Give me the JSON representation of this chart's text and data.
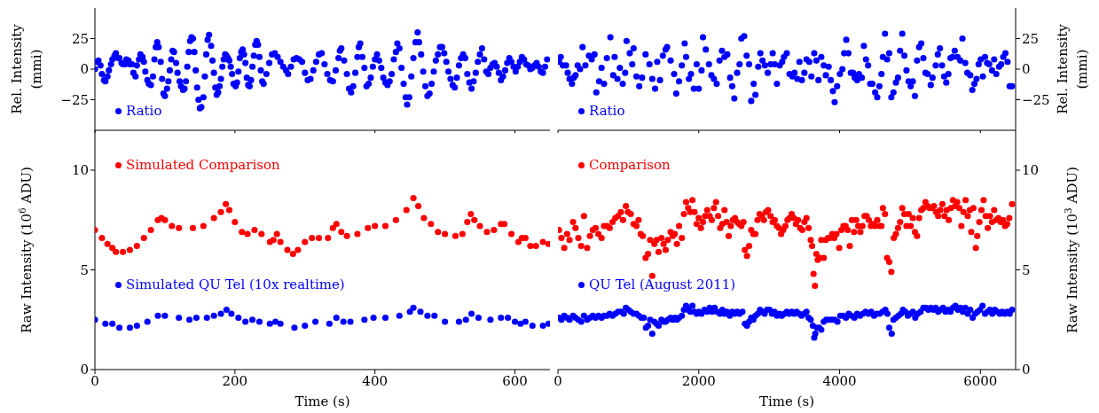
{
  "chart_data": [
    {
      "type": "scatter",
      "ylabel": "Rel. Intensity (mmi)",
      "xlim": [
        0,
        650
      ],
      "xticks": [
        0,
        200,
        400,
        600
      ],
      "ylim": [
        -50,
        50
      ],
      "yticks": [
        -25,
        0,
        25
      ],
      "tick_labels": "y",
      "legend": "bottom left",
      "marker": "circle",
      "series": [
        {
          "name": "Ratio",
          "color": "#0000ff",
          "x": [
            0,
            3,
            5,
            8,
            10,
            13,
            15,
            18,
            20,
            23,
            25,
            28,
            30,
            33,
            35,
            38,
            40,
            43,
            45,
            48,
            50,
            53,
            55,
            58,
            60,
            63,
            65,
            68,
            70,
            72,
            75,
            77,
            80,
            83,
            85,
            87,
            89,
            91,
            94,
            96,
            98,
            100,
            103,
            105,
            107,
            109,
            111,
            113,
            116,
            118,
            121,
            123,
            126,
            128,
            130,
            132,
            134,
            136,
            138,
            140,
            142,
            144,
            146,
            148,
            150,
            152,
            155,
            157,
            159,
            161,
            163,
            166,
            168,
            170,
            172,
            174,
            176,
            178,
            180,
            182,
            184,
            186,
            188,
            190,
            192,
            194,
            196,
            198,
            201,
            203,
            205,
            207,
            209,
            211,
            213,
            215,
            217,
            219,
            221,
            223,
            225,
            227,
            229,
            231,
            233,
            235,
            237,
            239,
            241,
            245,
            249,
            253,
            257,
            261,
            265,
            269,
            273,
            276,
            280,
            284,
            288,
            292,
            296,
            300,
            304,
            308,
            312,
            316,
            320,
            324,
            328,
            332,
            336,
            340,
            344,
            348,
            350,
            352,
            356,
            360,
            363,
            366,
            369,
            372,
            375,
            377,
            379,
            382,
            385,
            388,
            391,
            394,
            397,
            400,
            403,
            406,
            409,
            412,
            415,
            418,
            421,
            424,
            427,
            430,
            432,
            435,
            438,
            441,
            444,
            446,
            449,
            452,
            455,
            458,
            461,
            463,
            466,
            469,
            472,
            475,
            478,
            481,
            484,
            487,
            490,
            493,
            496,
            499,
            502,
            505,
            508,
            511,
            514,
            517,
            520,
            523,
            526,
            529,
            532,
            535,
            538,
            541,
            544,
            547,
            550,
            553,
            556,
            559,
            562,
            565,
            568,
            571,
            574,
            577,
            580,
            583,
            586,
            589,
            592,
            595,
            598,
            601,
            604,
            607,
            610,
            613,
            616,
            619,
            622,
            625,
            628,
            631,
            634,
            637,
            640,
            643,
            646
          ],
          "values": [
            0,
            6,
            7,
            3,
            -4,
            -9,
            -10,
            -6,
            -1,
            4,
            8,
            11,
            13,
            9,
            9,
            5,
            4,
            4,
            8,
            7,
            4,
            4,
            -3,
            -6,
            3,
            8,
            12,
            10,
            6,
            -2,
            -9,
            -12,
            -13,
            -6,
            8,
            18,
            22,
            18,
            6,
            -8,
            -20,
            -22,
            -16,
            -10,
            -1,
            8,
            15,
            14,
            5,
            -3,
            -10,
            -14,
            -17,
            -16,
            -10,
            2,
            14,
            23,
            26,
            25,
            14,
            -1,
            -15,
            -25,
            -32,
            -31,
            -23,
            -6,
            12,
            24,
            28,
            19,
            7,
            -3,
            -15,
            -21,
            -19,
            -14,
            -8,
            2,
            8,
            12,
            11,
            9,
            7,
            2,
            -4,
            -12,
            -14,
            -11,
            -2,
            9,
            14,
            16,
            12,
            5,
            -7,
            -13,
            -14,
            -9,
            2,
            11,
            20,
            23,
            20,
            10,
            -1,
            -10,
            -12,
            -4,
            5,
            12,
            13,
            10,
            6,
            2,
            -1,
            -4,
            2,
            8,
            9,
            8,
            6,
            -3,
            -9,
            -8,
            -1,
            6,
            12,
            13,
            4,
            -4,
            -9,
            -10,
            -1,
            9,
            15,
            17,
            7,
            -4,
            -16,
            -19,
            -14,
            -3,
            10,
            18,
            21,
            10,
            1,
            -14,
            -12,
            -7,
            2,
            8,
            12,
            7,
            1,
            -7,
            -11,
            -13,
            -10,
            -4,
            8,
            14,
            21,
            17,
            1,
            -12,
            -23,
            -29,
            -23,
            -6,
            9,
            22,
            30,
            22,
            12,
            -2,
            -14,
            -22,
            -20,
            -12,
            -2,
            7,
            12,
            18,
            18,
            13,
            6,
            -2,
            -8,
            -13,
            -15,
            -7,
            3,
            9,
            12,
            9,
            -4,
            -11,
            -16,
            -10,
            -3,
            6,
            12,
            17,
            8,
            -2,
            -4,
            1,
            4,
            5,
            2,
            -3,
            -9,
            -6,
            -1,
            5,
            9,
            6,
            2,
            -2,
            2,
            6,
            10,
            8,
            4,
            3,
            0,
            1,
            3,
            5,
            2,
            -2,
            -3,
            2,
            8
          ]
        }
      ]
    },
    {
      "type": "scatter",
      "y2label": "Rel. Intensity (mmi)",
      "xlim": [
        0,
        6500
      ],
      "xticks": [
        0,
        2000,
        4000,
        6000
      ],
      "y2lim": [
        -50,
        50
      ],
      "y2ticks": [
        -25,
        0,
        25
      ],
      "tick_labels": "y",
      "legend": "bottom left",
      "marker": "circle",
      "series": [
        {
          "name": "Ratio",
          "color": "#0000ff",
          "axis": "y2",
          "x": [
            15,
            40,
            70,
            115,
            140,
            165,
            200,
            225,
            250,
            280,
            315,
            350,
            390,
            440,
            480,
            520,
            545,
            585,
            620,
            655,
            695,
            745,
            785,
            805,
            845,
            880,
            920,
            955,
            975,
            1020,
            1055,
            1075,
            1115,
            1155,
            1195,
            1245,
            1300,
            1340,
            1380,
            1410,
            1450,
            1490,
            1530,
            1550,
            1600,
            1650,
            1680,
            1720,
            1760,
            1800,
            1820,
            1860,
            1890,
            1930,
            1970,
            2000,
            2040,
            2060,
            2100,
            2145,
            2180,
            2215,
            2255,
            2295,
            2330,
            2365,
            2405,
            2445,
            2475,
            2505,
            2545,
            2580,
            2605,
            2645,
            2680,
            2715,
            2745,
            2780,
            2805,
            2845,
            2875,
            2905,
            2940,
            2980,
            3020,
            3050,
            3080,
            3110,
            3150,
            3185,
            3210,
            3250,
            3290,
            3330,
            3360,
            3400,
            3430,
            3465,
            3500,
            3530,
            3570,
            3600,
            3640,
            3670,
            3700,
            3740,
            3775,
            3805,
            3845,
            3875,
            3905,
            3930,
            3965,
            4005,
            4040,
            4065,
            4095,
            4125,
            4160,
            4190,
            4215,
            4250,
            4275,
            4315,
            4345,
            4375,
            4405,
            4435,
            4465,
            4505,
            4535,
            4565,
            4595,
            4615,
            4645,
            4675,
            4705,
            4735,
            4765,
            4800,
            4830,
            4860,
            4890,
            4920,
            4950,
            4980,
            5010,
            5040,
            5070,
            5100,
            5130,
            5160,
            5190,
            5220,
            5250,
            5295,
            5320,
            5365,
            5395,
            5425,
            5455,
            5485,
            5515,
            5545,
            5575,
            5605,
            5635,
            5675,
            5715,
            5745,
            5785,
            5815,
            5855,
            5885,
            5915,
            5945,
            5975,
            6005,
            6035,
            6065,
            6095,
            6125,
            6165,
            6195,
            6225,
            6265,
            6295,
            6325,
            6355,
            6385,
            6415,
            6450
          ],
          "values": [
            6,
            10,
            3,
            3,
            -3,
            -8,
            -12,
            -7,
            -5,
            3,
            0,
            18,
            3,
            11,
            8,
            12,
            -19,
            -10,
            1,
            -12,
            9,
            26,
            -5,
            10,
            -8,
            1,
            -12,
            -3,
            23,
            13,
            4,
            17,
            -6,
            -14,
            -7,
            12,
            4,
            -8,
            -16,
            6,
            -9,
            11,
            16,
            18,
            7,
            -4,
            -20,
            -10,
            3,
            21,
            10,
            -8,
            -4,
            -16,
            4,
            -16,
            -1,
            26,
            16,
            4,
            -5,
            -8,
            -12,
            7,
            15,
            10,
            12,
            -7,
            -14,
            -24,
            -3,
            4,
            25,
            27,
            11,
            4,
            -26,
            -12,
            -21,
            2,
            13,
            7,
            3,
            -3,
            4,
            13,
            4,
            -12,
            3,
            6,
            10,
            13,
            -4,
            -6,
            -3,
            -8,
            6,
            -9,
            -3,
            8,
            6,
            -6,
            13,
            7,
            -9,
            10,
            3,
            -5,
            2,
            -9,
            -18,
            -27,
            -14,
            -4,
            0,
            13,
            24,
            13,
            -3,
            -3,
            -7,
            -9,
            -4,
            -7,
            19,
            8,
            3,
            -12,
            -12,
            -19,
            -23,
            -14,
            -4,
            10,
            29,
            8,
            13,
            -23,
            -19,
            -11,
            -7,
            15,
            29,
            11,
            -1,
            -10,
            -14,
            -10,
            -22,
            7,
            18,
            21,
            9,
            -3,
            -4,
            -13,
            -7,
            3,
            12,
            17,
            3,
            -6,
            -11,
            -4,
            9,
            10,
            15,
            10,
            7,
            25,
            5,
            -3,
            -5,
            -17,
            -12,
            -8,
            4,
            8,
            -6,
            10,
            5,
            4,
            -1,
            8,
            -4,
            2,
            4,
            10,
            13,
            6,
            -14,
            -14
          ]
        }
      ]
    },
    {
      "type": "scatter",
      "xlabel": "Time (s)",
      "ylabel": "Raw Intensity (10$^{6}$ ADU)",
      "xlim": [
        0,
        650
      ],
      "xticks": [
        0,
        200,
        400,
        600
      ],
      "ylim": [
        0,
        12
      ],
      "yticks": [
        0,
        5,
        10
      ],
      "legend": "left",
      "marker": "circle",
      "series": [
        {
          "name": "Simulated Comparison",
          "color": "#ff0000",
          "x": [
            0,
            10,
            18,
            25,
            30,
            40,
            50,
            60,
            70,
            80,
            90,
            95,
            100,
            110,
            120,
            140,
            155,
            170,
            180,
            187,
            192,
            200,
            210,
            218,
            228,
            238,
            250,
            255,
            260,
            265,
            275,
            283,
            290,
            300,
            310,
            320,
            333,
            340,
            345,
            352,
            360,
            375,
            390,
            400,
            415,
            430,
            445,
            455,
            462,
            470,
            480,
            490,
            500,
            515,
            525,
            532,
            537,
            542,
            550,
            560,
            570,
            580,
            585,
            595,
            605,
            610,
            615,
            622,
            630,
            640,
            648
          ],
          "values": [
            7.0,
            6.6,
            6.3,
            6.1,
            5.9,
            5.9,
            6.0,
            6.2,
            6.6,
            7.0,
            7.5,
            7.6,
            7.5,
            7.2,
            7.1,
            7.1,
            7.2,
            7.6,
            7.9,
            8.3,
            8.0,
            7.4,
            6.9,
            6.8,
            7.0,
            6.8,
            6.4,
            6.5,
            6.8,
            6.4,
            6.0,
            5.8,
            6.0,
            6.4,
            6.6,
            6.6,
            6.6,
            7.1,
            7.3,
            6.9,
            6.7,
            6.8,
            7.1,
            7.2,
            7.2,
            7.5,
            8.0,
            8.6,
            8.2,
            7.6,
            7.3,
            6.9,
            6.8,
            6.7,
            6.8,
            7.4,
            7.8,
            7.5,
            7.2,
            6.9,
            7.0,
            7.3,
            7.3,
            6.8,
            6.4,
            6.6,
            6.6,
            6.2,
            6.2,
            6.4,
            6.3
          ]
        },
        {
          "name": "Simulated QU Tel (10x realtime)",
          "color": "#0000ff",
          "x": [
            0,
            15,
            25,
            35,
            50,
            60,
            75,
            90,
            100,
            120,
            135,
            145,
            160,
            170,
            180,
            188,
            195,
            205,
            215,
            225,
            235,
            250,
            258,
            265,
            285,
            300,
            315,
            335,
            345,
            355,
            365,
            385,
            398,
            415,
            435,
            450,
            455,
            465,
            475,
            485,
            500,
            520,
            530,
            538,
            548,
            565,
            580,
            590,
            600,
            608,
            615,
            625,
            640,
            648
          ],
          "values": [
            2.5,
            2.3,
            2.3,
            2.1,
            2.1,
            2.2,
            2.4,
            2.7,
            2.7,
            2.6,
            2.5,
            2.6,
            2.6,
            2.7,
            2.8,
            3.0,
            2.8,
            2.6,
            2.4,
            2.5,
            2.4,
            2.3,
            2.4,
            2.3,
            2.1,
            2.2,
            2.4,
            2.3,
            2.6,
            2.4,
            2.4,
            2.5,
            2.6,
            2.6,
            2.7,
            2.9,
            3.1,
            2.9,
            2.7,
            2.7,
            2.4,
            2.4,
            2.5,
            2.8,
            2.6,
            2.5,
            2.6,
            2.6,
            2.4,
            2.3,
            2.4,
            2.2,
            2.2,
            2.3
          ]
        }
      ]
    },
    {
      "type": "scatter",
      "xlabel": "Time (s)",
      "y2label": "Raw Intensity (10$^{3}$ ADU)",
      "xlim": [
        0,
        6500
      ],
      "xticks": [
        0,
        2000,
        4000,
        6000
      ],
      "y2lim": [
        0,
        12
      ],
      "y2ticks": [
        0,
        5,
        10
      ],
      "legend": "left",
      "marker": "circle",
      "series": [
        {
          "name": "Comparison",
          "color": "#ff0000",
          "axis": "y2",
          "x": [
            15,
            50,
            90,
            130,
            165,
            215,
            250,
            290,
            330,
            370,
            415,
            455,
            495,
            535,
            575,
            620,
            655,
            695,
            735,
            775,
            815,
            855,
            895,
            925,
            965,
            995,
            1035,
            1075,
            1115,
            1145,
            1175,
            1205,
            1245,
            1280,
            1310,
            1340,
            1370,
            1400,
            1430,
            1470,
            1500,
            1530,
            1560,
            1600,
            1630,
            1660,
            1690,
            1720,
            1760,
            1790,
            1820,
            1850,
            1880,
            1910,
            1940,
            1970,
            2000,
            2030,
            2060,
            2090,
            2120,
            2155,
            2185,
            2215,
            2245,
            2275,
            2305,
            2335,
            2365,
            2395,
            2425,
            2455,
            2485,
            2515,
            2545,
            2575,
            2605,
            2635,
            2655,
            2685,
            2715,
            2745,
            2775,
            2805,
            2835,
            2865,
            2895,
            2925,
            2955,
            2985,
            3020,
            3050,
            3080,
            3110,
            3140,
            3170,
            3200,
            3230,
            3260,
            3290,
            3320,
            3350,
            3380,
            3410,
            3440,
            3470,
            3500,
            3530,
            3560,
            3590,
            3610,
            3630,
            3650,
            3670,
            3690,
            3720,
            3740,
            3775,
            3805,
            3835,
            3865,
            3895,
            3925,
            3955,
            3995,
            4025,
            4055,
            4085,
            4115,
            4145,
            4175,
            4205,
            4235,
            4265,
            4295,
            4325,
            4355,
            4385,
            4415,
            4445,
            4475,
            4505,
            4535,
            4565,
            4595,
            4615,
            4645,
            4675,
            4705,
            4735,
            4770,
            4800,
            4830,
            4860,
            4890,
            4920,
            4950,
            4980,
            5010,
            5040,
            5070,
            5100,
            5130,
            5160,
            5190,
            5220,
            5250,
            5280,
            5310,
            5340,
            5370,
            5400,
            5430,
            5460,
            5490,
            5520,
            5550,
            5580,
            5610,
            5640,
            5670,
            5700,
            5730,
            5760,
            5790,
            5820,
            5850,
            5870,
            5900,
            5935,
            5955,
            5985,
            6015,
            6045,
            6075,
            6105,
            6135,
            6165,
            6195,
            6225,
            6255,
            6290,
            6320,
            6350,
            6380,
            6410,
            6450
          ],
          "values": [
            7.0,
            6.6,
            6.1,
            6.8,
            6.5,
            7.4,
            7.1,
            6.6,
            6.2,
            7.7,
            6.1,
            6.7,
            7.0,
            7.1,
            6.8,
            6.6,
            7.2,
            7.2,
            7.1,
            7.4,
            7.6,
            7.7,
            7.9,
            7.5,
            8.2,
            7.9,
            7.8,
            7.3,
            7.2,
            7.5,
            6.8,
            6.7,
            5.6,
            5.8,
            6.5,
            4.7,
            6.3,
            6.5,
            5.9,
            6.6,
            6.3,
            6.0,
            6.5,
            6.9,
            6.7,
            6.8,
            6.3,
            7.2,
            6.6,
            7.8,
            8.4,
            8.1,
            7.9,
            8.5,
            7.9,
            7.3,
            7.6,
            7.1,
            7.4,
            7.7,
            8.0,
            7.7,
            7.5,
            8.1,
            8.4,
            7.7,
            7.1,
            7.3,
            8.0,
            7.4,
            6.7,
            7.2,
            7.5,
            7.6,
            7.4,
            7.3,
            7.2,
            7.4,
            6.0,
            5.7,
            6.2,
            7.0,
            6.8,
            6.8,
            7.5,
            7.8,
            7.7,
            7.5,
            7.9,
            8.0,
            7.7,
            7.4,
            7.5,
            7.2,
            7.1,
            6.8,
            7.0,
            7.2,
            7.5,
            7.6,
            7.8,
            7.6,
            7.3,
            7.5,
            7.1,
            7.0,
            7.4,
            7.6,
            7.1,
            6.5,
            6.2,
            4.8,
            4.2,
            5.8,
            5.5,
            5.6,
            6.5,
            5.6,
            6.5,
            6.6,
            6.6,
            6.8,
            6.6,
            6.8,
            6.1,
            7.0,
            7.2,
            7.2,
            7.0,
            6.2,
            7.5,
            6.9,
            7.5,
            7.2,
            6.9,
            7.2,
            7.7,
            7.7,
            7.5,
            7.2,
            7.3,
            7.2,
            7.5,
            7.2,
            7.2,
            8.1,
            7.8,
            5.6,
            5.4,
            4.9,
            6.6,
            6.8,
            7.1,
            7.4,
            8.1,
            7.8,
            7.2,
            7.8,
            7.2,
            7.6,
            6.9,
            6.7,
            7.6,
            8.0,
            8.1,
            8.4,
            8.2,
            8.1,
            8.1,
            8.2,
            7.9,
            7.7,
            8.0,
            8.3,
            7.7,
            8.0,
            7.5,
            8.1,
            8.5,
            8.2,
            8.4,
            8.1,
            7.2,
            7.9,
            8.5,
            7.7,
            8.0,
            6.9,
            8.1,
            6.1,
            6.7,
            7.4,
            8.0,
            8.5,
            7.7,
            7.1,
            7.7,
            7.4,
            8.0,
            7.5,
            7.6,
            7.4,
            7.5,
            7.2,
            7.3,
            7.6,
            8.3
          ]
        },
        {
          "name": "QU Tel (August 2011)",
          "color": "#0000ff",
          "axis": "y2",
          "x": [
            15,
            50,
            90,
            130,
            165,
            215,
            250,
            290,
            330,
            370,
            415,
            455,
            495,
            535,
            575,
            620,
            655,
            695,
            735,
            775,
            815,
            855,
            895,
            935,
            965,
            1000,
            1035,
            1075,
            1115,
            1150,
            1185,
            1220,
            1250,
            1280,
            1310,
            1340,
            1370,
            1400,
            1430,
            1470,
            1500,
            1530,
            1560,
            1600,
            1630,
            1660,
            1690,
            1720,
            1760,
            1790,
            1820,
            1850,
            1880,
            1910,
            1940,
            1970,
            2000,
            2040,
            2080,
            2120,
            2155,
            2190,
            2225,
            2260,
            2300,
            2335,
            2365,
            2400,
            2440,
            2475,
            2510,
            2545,
            2580,
            2620,
            2655,
            2685,
            2715,
            2745,
            2775,
            2805,
            2840,
            2870,
            2900,
            2935,
            2970,
            3005,
            3040,
            3075,
            3110,
            3145,
            3180,
            3215,
            3250,
            3285,
            3320,
            3355,
            3390,
            3425,
            3460,
            3495,
            3530,
            3560,
            3590,
            3620,
            3640,
            3655,
            3680,
            3710,
            3740,
            3775,
            3810,
            3850,
            3890,
            3930,
            3970,
            4010,
            4050,
            4090,
            4130,
            4170,
            4210,
            4250,
            4290,
            4330,
            4370,
            4410,
            4450,
            4490,
            4530,
            4570,
            4610,
            4650,
            4680,
            4705,
            4740,
            4765,
            4800,
            4835,
            4870,
            4900,
            4935,
            4970,
            5005,
            5040,
            5075,
            5110,
            5150,
            5190,
            5225,
            5260,
            5295,
            5330,
            5365,
            5400,
            5435,
            5470,
            5505,
            5540,
            5575,
            5610,
            5645,
            5680,
            5715,
            5750,
            5785,
            5820,
            5855,
            5890,
            5925,
            5960,
            5995,
            6030,
            6065,
            6100,
            6135,
            6170,
            6205,
            6240,
            6275,
            6310,
            6345,
            6380,
            6415,
            6450
          ],
          "values": [
            2.6,
            2.5,
            2.7,
            2.6,
            2.5,
            2.7,
            2.6,
            2.5,
            2.4,
            2.7,
            2.5,
            2.6,
            2.7,
            2.6,
            2.7,
            2.6,
            2.7,
            2.7,
            2.8,
            2.7,
            2.8,
            2.9,
            2.9,
            2.8,
            3.1,
            3.0,
            2.9,
            2.8,
            2.8,
            2.7,
            2.6,
            2.6,
            2.1,
            2.2,
            2.5,
            1.8,
            2.4,
            2.3,
            2.2,
            2.5,
            2.4,
            2.4,
            2.5,
            2.6,
            2.5,
            2.6,
            2.5,
            2.6,
            2.7,
            3.0,
            3.2,
            3.0,
            2.9,
            3.2,
            2.9,
            2.8,
            2.9,
            2.8,
            3.0,
            2.9,
            3.1,
            2.9,
            3.1,
            2.9,
            2.8,
            3.0,
            2.8,
            2.9,
            2.7,
            2.9,
            2.8,
            2.9,
            2.8,
            2.9,
            2.3,
            2.2,
            2.4,
            2.6,
            2.5,
            2.7,
            2.8,
            3.0,
            2.9,
            2.8,
            3.0,
            3.0,
            2.8,
            2.9,
            2.7,
            2.8,
            2.7,
            2.8,
            2.9,
            2.8,
            2.9,
            2.8,
            2.9,
            2.8,
            2.7,
            2.8,
            2.9,
            2.6,
            2.5,
            2.2,
            1.6,
            1.8,
            2.1,
            2.1,
            2.0,
            2.4,
            2.5,
            2.5,
            2.5,
            2.5,
            2.4,
            2.7,
            2.7,
            2.6,
            2.8,
            2.7,
            2.6,
            2.8,
            2.7,
            2.8,
            2.9,
            2.8,
            2.9,
            2.7,
            2.8,
            2.8,
            2.9,
            3.0,
            2.8,
            2.1,
            1.8,
            2.5,
            2.6,
            2.7,
            2.8,
            3.0,
            2.9,
            2.7,
            2.8,
            2.9,
            2.6,
            2.8,
            2.9,
            3.1,
            3.1,
            3.0,
            3.1,
            3.0,
            3.1,
            2.9,
            3.0,
            3.1,
            2.9,
            3.0,
            2.9,
            3.1,
            3.2,
            3.0,
            3.1,
            2.9,
            3.1,
            2.8,
            3.0,
            2.6,
            2.8,
            2.9,
            3.0,
            3.2,
            2.8,
            2.9,
            3.0,
            2.8,
            3.0,
            2.9,
            2.8,
            2.9,
            2.8,
            2.9,
            2.8,
            3.0
          ]
        }
      ]
    }
  ]
}
